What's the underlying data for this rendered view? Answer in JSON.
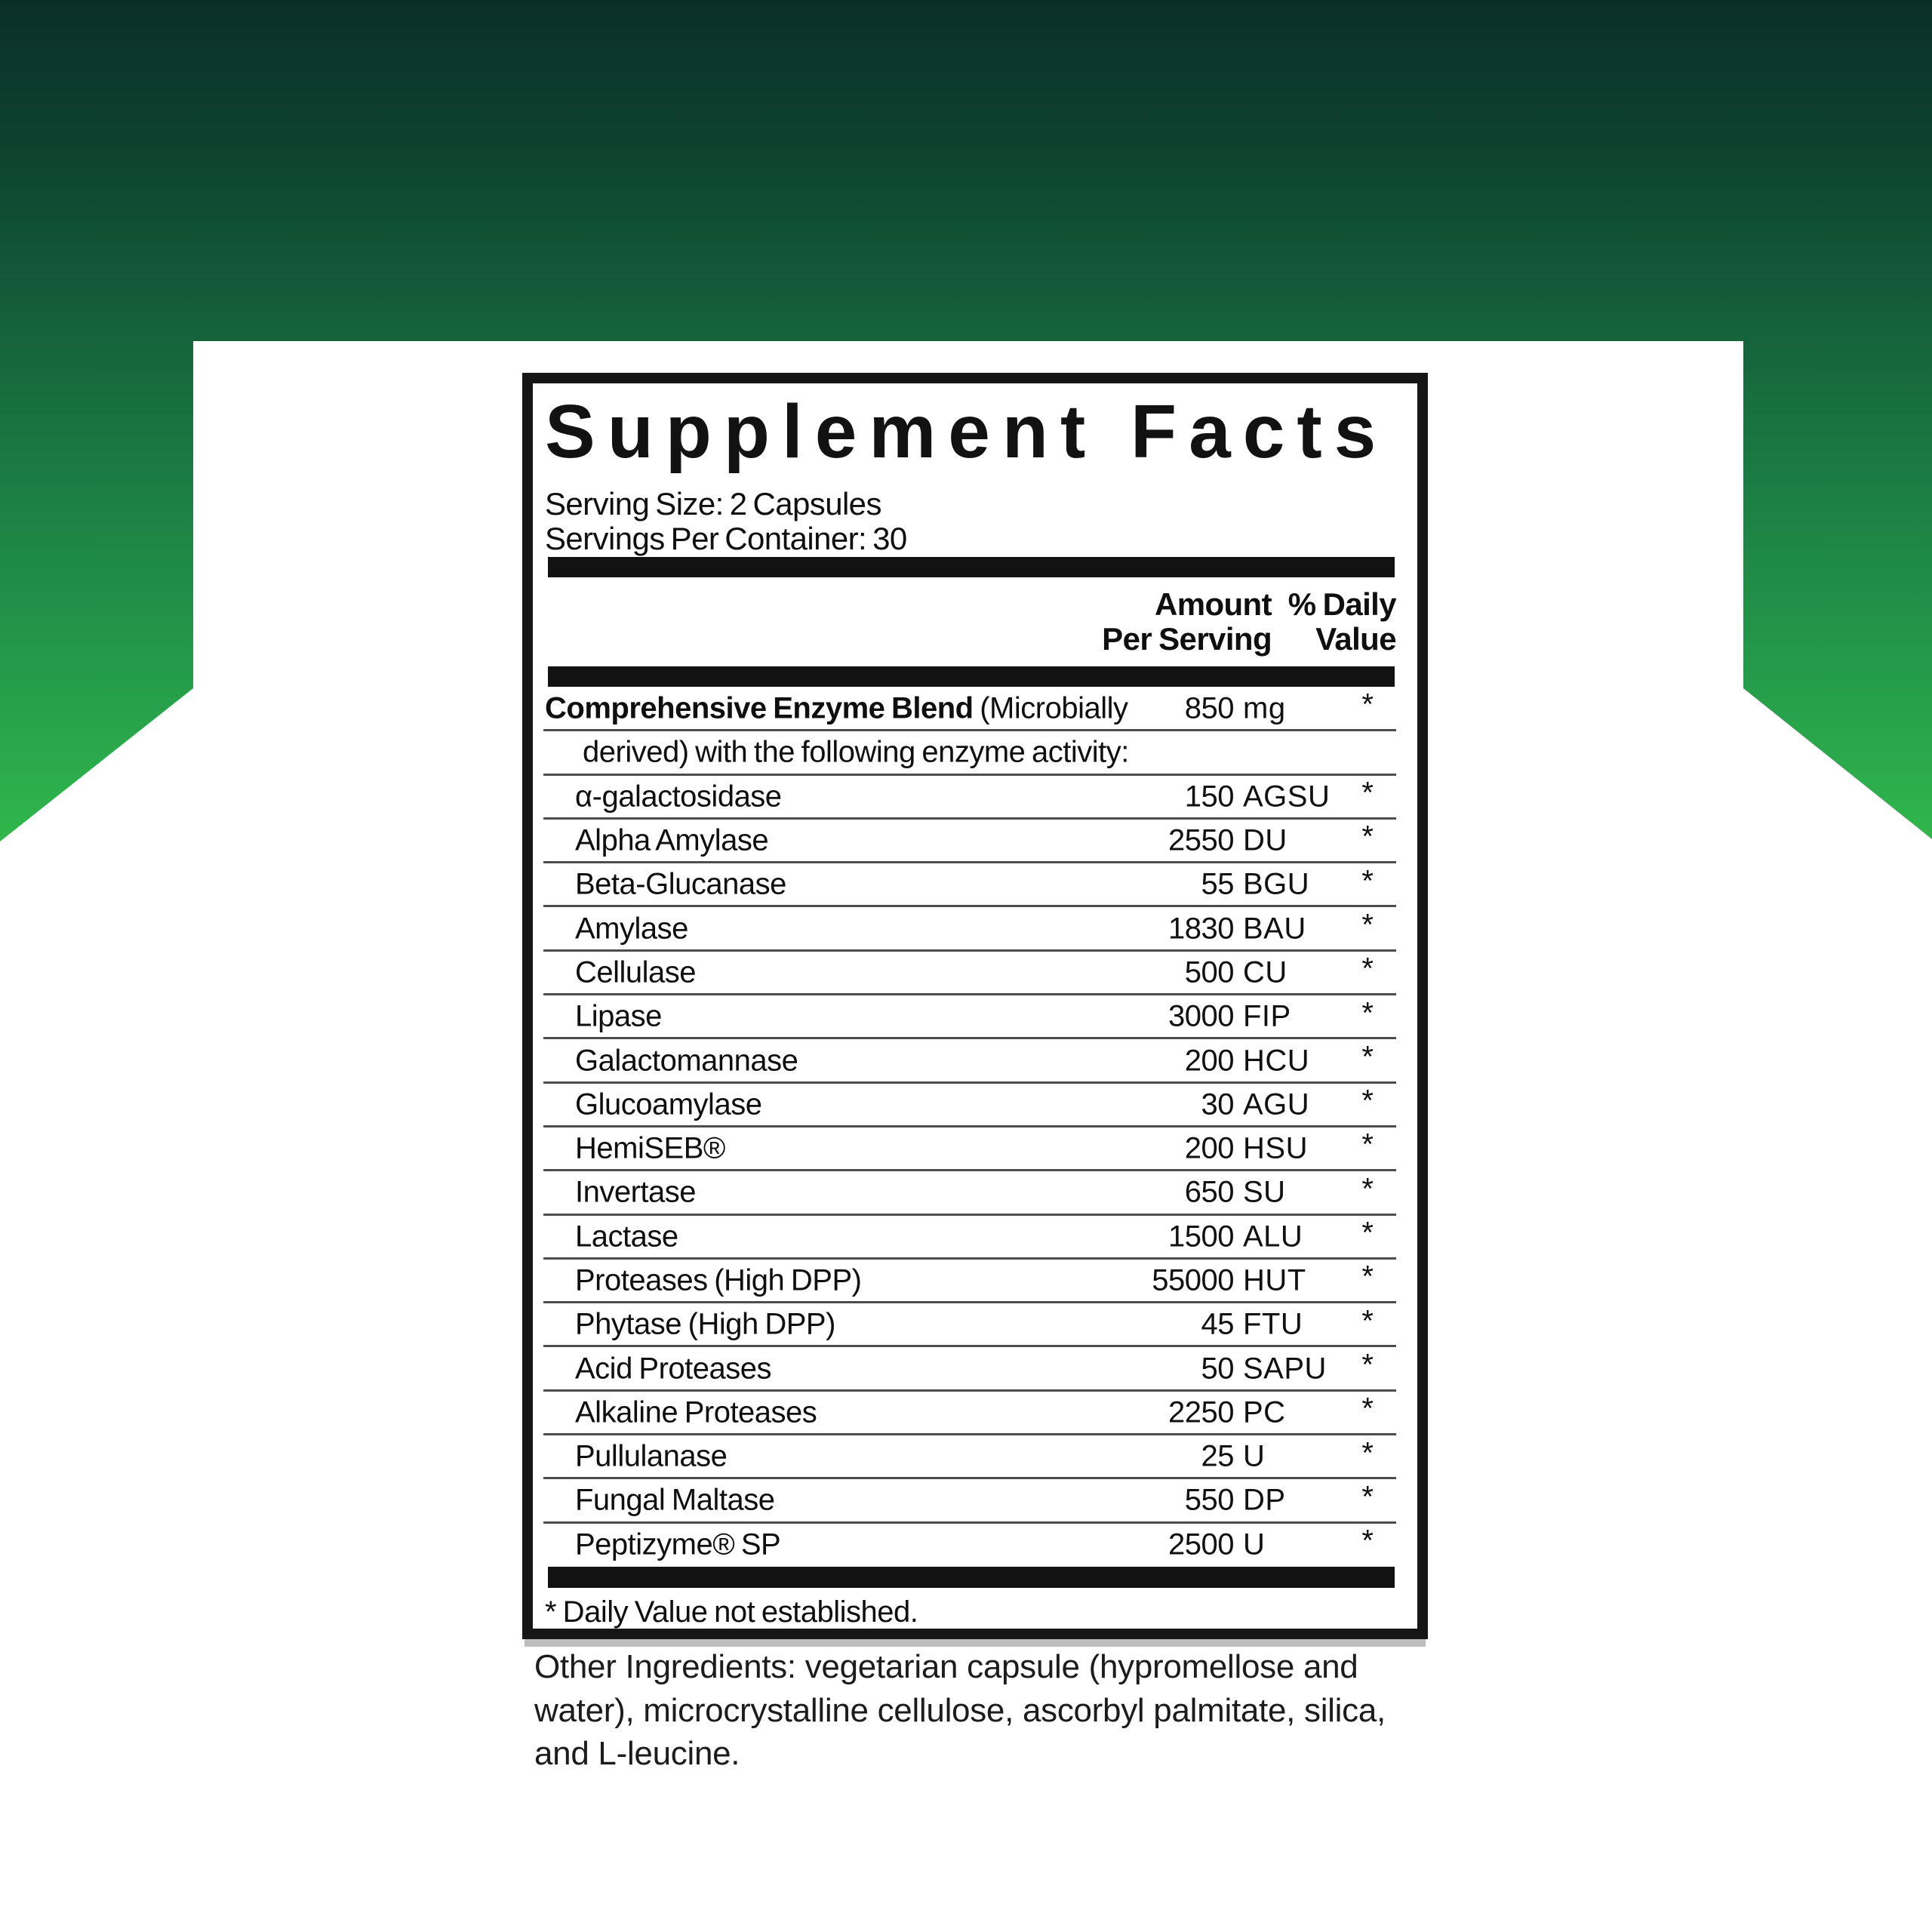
{
  "background": {
    "gradient_stops": [
      "#0a2f27",
      "#0e4631",
      "#15623a",
      "#1c8044",
      "#259c4a",
      "#31b84d",
      "#34bd4e"
    ],
    "white": "#ffffff"
  },
  "panel": {
    "title": "Supplement Facts",
    "serving_size": "Serving Size: 2 Capsules",
    "servings_per_container": "Servings Per Container: 30",
    "columns": {
      "amount_line1": "Amount",
      "amount_line2": "Per Serving",
      "dv_line1": "% Daily",
      "dv_line2": "Value"
    },
    "rows": [
      {
        "label_bold": "Comprehensive Enzyme Blend",
        "label": " (Microbially",
        "amount": "850",
        "unit": "mg",
        "dv": "*",
        "indent": 0
      },
      {
        "label": "derived) with the following enzyme activity:",
        "amount": "",
        "unit": "",
        "dv": "",
        "indent": 2
      },
      {
        "label": "α-galactosidase",
        "amount": "150",
        "unit": "AGSU",
        "dv": "*",
        "indent": 1
      },
      {
        "label": "Alpha Amylase",
        "amount": "2550",
        "unit": "DU",
        "dv": "*",
        "indent": 1
      },
      {
        "label": "Beta-Glucanase",
        "amount": "55",
        "unit": "BGU",
        "dv": "*",
        "indent": 1
      },
      {
        "label": "Amylase",
        "amount": "1830",
        "unit": "BAU",
        "dv": "*",
        "indent": 1
      },
      {
        "label": "Cellulase",
        "amount": "500",
        "unit": "CU",
        "dv": "*",
        "indent": 1
      },
      {
        "label": "Lipase",
        "amount": "3000",
        "unit": "FIP",
        "dv": "*",
        "indent": 1
      },
      {
        "label": "Galactomannase",
        "amount": "200",
        "unit": "HCU",
        "dv": "*",
        "indent": 1
      },
      {
        "label": "Glucoamylase",
        "amount": "30",
        "unit": "AGU",
        "dv": "*",
        "indent": 1
      },
      {
        "label": "HemiSEB®",
        "amount": "200",
        "unit": "HSU",
        "dv": "*",
        "indent": 1
      },
      {
        "label": "Invertase",
        "amount": "650",
        "unit": "SU",
        "dv": "*",
        "indent": 1
      },
      {
        "label": "Lactase",
        "amount": "1500",
        "unit": "ALU",
        "dv": "*",
        "indent": 1
      },
      {
        "label": "Proteases (High DPP)",
        "amount": "55000",
        "unit": "HUT",
        "dv": "*",
        "indent": 1
      },
      {
        "label": "Phytase (High DPP)",
        "amount": "45",
        "unit": "FTU",
        "dv": "*",
        "indent": 1
      },
      {
        "label": "Acid Proteases",
        "amount": "50",
        "unit": "SAPU",
        "dv": "*",
        "indent": 1
      },
      {
        "label": "Alkaline Proteases",
        "amount": "2250",
        "unit": "PC",
        "dv": "*",
        "indent": 1
      },
      {
        "label": "Pullulanase",
        "amount": "25",
        "unit": "U",
        "dv": "*",
        "indent": 1
      },
      {
        "label": "Fungal Maltase",
        "amount": "550",
        "unit": "DP",
        "dv": "*",
        "indent": 1
      },
      {
        "label": "Peptizyme® SP",
        "amount": "2500",
        "unit": "U",
        "dv": "*",
        "indent": 1
      }
    ],
    "footnote": "* Daily Value not established."
  },
  "other_ingredients": {
    "lines": [
      "Other Ingredients: vegetarian capsule (hypromellose and",
      "water), microcrystalline cellulose, ascorbyl palmitate, silica,",
      "and L-leucine."
    ]
  }
}
